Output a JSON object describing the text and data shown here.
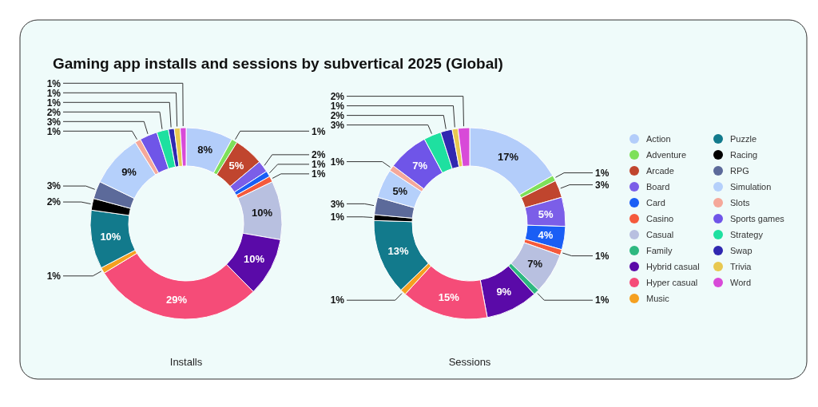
{
  "chart_data": {
    "type": "donut",
    "title": "Gaming app installs and sessions by subvertical 2025 (Global)",
    "legend": "right",
    "categories": [
      "Action",
      "Adventure",
      "Arcade",
      "Board",
      "Card",
      "Casino",
      "Casual",
      "Family",
      "Hybrid casual",
      "Hyper casual",
      "Music",
      "Puzzle",
      "Racing",
      "RPG",
      "Simulation",
      "Slots",
      "Sports games",
      "Strategy",
      "Swap",
      "Trivia",
      "Word"
    ],
    "colors": [
      "#b3cdfa",
      "#7ee05a",
      "#c0452e",
      "#7b5ee8",
      "#1a5ef5",
      "#f55a3c",
      "#b8c0e0",
      "#2db880",
      "#5a0aa8",
      "#f54c78",
      "#f5a020",
      "#127a8c",
      "#000000",
      "#5c6a9a",
      "#b5d0fb",
      "#f5a89a",
      "#6f55e8",
      "#1ee0a0",
      "#3028b0",
      "#e8c850",
      "#d84ad8"
    ],
    "series": [
      {
        "name": "Installs",
        "values": [
          8,
          1,
          5,
          2,
          1,
          1,
          10,
          0,
          10,
          29,
          1,
          10,
          2,
          3,
          9,
          1,
          3,
          2,
          1,
          1,
          1
        ],
        "value_labels": [
          "8%",
          "1%",
          "5%",
          "2%",
          "1%",
          "1%",
          "10%",
          null,
          "10%",
          "29%",
          "1%",
          "10%",
          "2%",
          "3%",
          "9%",
          "1%",
          "3%",
          "2%",
          "1%",
          "1%",
          "1%"
        ]
      },
      {
        "name": "Sessions",
        "values": [
          17,
          1,
          3,
          5,
          4,
          1,
          7,
          1,
          9,
          15,
          1,
          13,
          1,
          3,
          5,
          1,
          7,
          3,
          2,
          1,
          2
        ],
        "value_labels": [
          "17%",
          "1%",
          "3%",
          "5%",
          "4%",
          "1%",
          "7%",
          "1%",
          "9%",
          "15%",
          "1%",
          "13%",
          "1%",
          "3%",
          "5%",
          "1%",
          "7%",
          "3%",
          "2%",
          "1%",
          "2%"
        ]
      }
    ]
  }
}
